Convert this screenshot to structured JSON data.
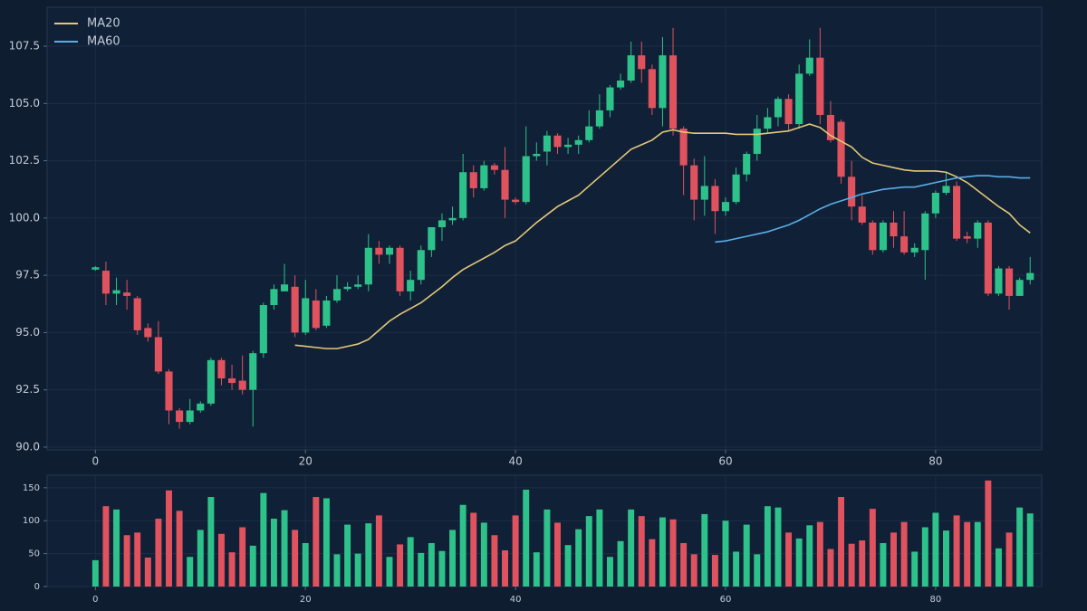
{
  "chart_data": [
    {
      "type": "candlestick",
      "open": [
        97.75,
        97.7,
        96.7,
        96.75,
        96.5,
        95.2,
        94.8,
        93.3,
        91.6,
        91.1,
        91.6,
        91.9,
        93.8,
        93.0,
        92.9,
        92.5,
        94.1,
        96.2,
        96.8,
        97.0,
        95.0,
        96.4,
        95.3,
        96.4,
        96.9,
        97.0,
        97.1,
        98.7,
        98.4,
        98.7,
        96.8,
        97.3,
        98.6,
        99.6,
        99.9,
        100.0,
        102.0,
        101.3,
        102.3,
        102.1,
        100.8,
        100.7,
        102.7,
        102.9,
        103.6,
        103.1,
        103.2,
        103.4,
        104.0,
        104.7,
        105.7,
        106.0,
        107.1,
        106.5,
        104.8,
        107.1,
        103.9,
        102.3,
        100.8,
        101.4,
        100.3,
        100.7,
        101.9,
        102.8,
        103.9,
        104.4,
        105.2,
        104.1,
        106.3,
        107.0,
        104.5,
        104.2,
        101.8,
        100.5,
        99.8,
        98.6,
        99.8,
        99.2,
        98.5,
        98.6,
        100.2,
        101.1,
        101.4,
        99.2,
        99.1,
        99.8,
        96.7,
        97.8,
        96.6,
        97.3
      ],
      "high": [
        97.9,
        98.1,
        97.4,
        97.3,
        96.6,
        95.4,
        95.5,
        93.4,
        91.7,
        92.1,
        92.0,
        93.9,
        93.9,
        93.6,
        94.0,
        94.2,
        96.3,
        97.1,
        98.0,
        97.5,
        97.3,
        96.9,
        96.6,
        97.5,
        97.2,
        97.5,
        99.3,
        99.0,
        98.8,
        98.8,
        97.7,
        98.8,
        99.6,
        100.2,
        100.5,
        102.8,
        102.3,
        102.5,
        102.4,
        103.1,
        100.9,
        104.0,
        103.3,
        103.8,
        103.7,
        103.5,
        103.6,
        104.7,
        105.4,
        105.8,
        106.3,
        107.7,
        107.7,
        106.7,
        107.9,
        108.3,
        104.0,
        102.6,
        102.7,
        101.7,
        100.9,
        102.2,
        102.9,
        104.5,
        104.8,
        105.3,
        105.4,
        106.7,
        107.8,
        108.3,
        105.1,
        104.3,
        102.5,
        101.0,
        99.9,
        99.9,
        100.3,
        100.3,
        98.9,
        100.3,
        101.2,
        102.0,
        101.6,
        99.4,
        99.9,
        99.9,
        97.9,
        97.9,
        97.4,
        98.3
      ],
      "low": [
        97.7,
        96.2,
        96.2,
        96.0,
        94.9,
        94.6,
        93.2,
        91.0,
        90.8,
        91.0,
        91.5,
        91.8,
        92.7,
        92.5,
        92.3,
        90.9,
        93.9,
        96.0,
        96.8,
        94.8,
        94.9,
        95.1,
        95.2,
        96.3,
        96.8,
        96.9,
        96.8,
        98.0,
        98.0,
        96.6,
        96.4,
        97.1,
        98.3,
        99.0,
        99.7,
        99.9,
        100.9,
        101.2,
        101.9,
        100.0,
        100.6,
        100.6,
        102.5,
        102.3,
        102.8,
        102.8,
        102.8,
        103.3,
        103.9,
        104.4,
        105.6,
        105.9,
        105.9,
        104.5,
        104.0,
        103.6,
        101.0,
        99.9,
        100.1,
        99.3,
        100.1,
        100.6,
        101.6,
        102.5,
        103.7,
        104.0,
        103.8,
        103.9,
        106.2,
        104.1,
        103.3,
        101.5,
        99.9,
        99.7,
        98.4,
        98.5,
        98.7,
        98.4,
        98.3,
        97.3,
        100.0,
        101.0,
        99.0,
        98.9,
        98.7,
        96.6,
        96.6,
        96.0,
        96.6,
        97.1
      ],
      "close": [
        97.85,
        96.7,
        96.85,
        96.6,
        95.1,
        94.8,
        93.3,
        91.6,
        91.1,
        91.6,
        91.9,
        93.8,
        93.0,
        92.8,
        92.5,
        94.1,
        96.2,
        96.9,
        97.1,
        95.0,
        96.5,
        95.2,
        96.4,
        96.9,
        97.0,
        97.1,
        98.7,
        98.4,
        98.7,
        96.8,
        97.3,
        98.6,
        99.6,
        99.9,
        100.0,
        102.0,
        101.3,
        102.3,
        102.1,
        100.8,
        100.7,
        102.7,
        102.8,
        103.6,
        103.1,
        103.2,
        103.4,
        104.0,
        104.7,
        105.7,
        106.0,
        107.1,
        106.5,
        104.8,
        107.1,
        103.9,
        102.3,
        100.8,
        101.4,
        100.3,
        100.7,
        101.9,
        102.8,
        103.9,
        104.4,
        105.2,
        104.1,
        106.3,
        107.0,
        104.5,
        103.4,
        101.8,
        100.5,
        99.8,
        98.6,
        99.8,
        99.2,
        98.5,
        98.7,
        100.2,
        101.1,
        101.4,
        99.1,
        99.1,
        99.8,
        96.7,
        97.8,
        96.6,
        97.3,
        97.6
      ],
      "up_color": "#2ec28b",
      "down_color": "#e0525e",
      "series": [
        {
          "name": "MA20",
          "color": "#e3c878",
          "values": [
            null,
            null,
            null,
            null,
            null,
            null,
            null,
            null,
            null,
            null,
            null,
            null,
            null,
            null,
            null,
            null,
            null,
            null,
            null,
            94.45,
            94.4,
            94.35,
            94.3,
            94.3,
            94.4,
            94.5,
            94.7,
            95.1,
            95.5,
            95.8,
            96.05,
            96.3,
            96.65,
            97.0,
            97.4,
            97.75,
            98.0,
            98.25,
            98.5,
            98.8,
            99.0,
            99.4,
            99.8,
            100.15,
            100.5,
            100.75,
            101.0,
            101.4,
            101.8,
            102.2,
            102.6,
            103.0,
            103.2,
            103.4,
            103.75,
            103.85,
            103.75,
            103.7,
            103.7,
            103.7,
            103.7,
            103.65,
            103.65,
            103.65,
            103.7,
            103.75,
            103.8,
            103.95,
            104.1,
            103.95,
            103.6,
            103.35,
            103.1,
            102.65,
            102.4,
            102.3,
            102.2,
            102.1,
            102.05,
            102.05,
            102.05,
            102.0,
            101.8,
            101.55,
            101.2,
            100.85,
            100.5,
            100.2,
            99.7,
            99.35
          ]
        },
        {
          "name": "MA60",
          "color": "#5aaee8",
          "values": [
            null,
            null,
            null,
            null,
            null,
            null,
            null,
            null,
            null,
            null,
            null,
            null,
            null,
            null,
            null,
            null,
            null,
            null,
            null,
            null,
            null,
            null,
            null,
            null,
            null,
            null,
            null,
            null,
            null,
            null,
            null,
            null,
            null,
            null,
            null,
            null,
            null,
            null,
            null,
            null,
            null,
            null,
            null,
            null,
            null,
            null,
            null,
            null,
            null,
            null,
            null,
            null,
            null,
            null,
            null,
            null,
            null,
            null,
            null,
            98.95,
            99.0,
            99.1,
            99.2,
            99.3,
            99.4,
            99.55,
            99.7,
            99.9,
            100.15,
            100.4,
            100.6,
            100.75,
            100.9,
            101.05,
            101.15,
            101.25,
            101.3,
            101.35,
            101.35,
            101.45,
            101.55,
            101.65,
            101.75,
            101.8,
            101.85,
            101.85,
            101.8,
            101.8,
            101.75,
            101.75
          ]
        }
      ],
      "legend": "upper left",
      "grid": true,
      "xlim": [
        -4.6,
        90.1
      ],
      "xticks": [
        0,
        20,
        40,
        60,
        80
      ],
      "ylim": [
        89.88,
        109.2
      ],
      "yticks": [
        {
          "value": 90,
          "label": "90.0"
        },
        92.5,
        {
          "value": 95,
          "label": "95.0"
        },
        97.5,
        {
          "value": 100,
          "label": "100.0"
        },
        102.5,
        {
          "value": 105,
          "label": "105.0"
        },
        107.5
      ]
    },
    {
      "type": "bar",
      "values": [
        40,
        122,
        117,
        78,
        82,
        44,
        103,
        146,
        115,
        45,
        86,
        136,
        80,
        52,
        90,
        62,
        142,
        103,
        116,
        86,
        66,
        136,
        134,
        49,
        94,
        50,
        96,
        108,
        45,
        64,
        75,
        51,
        66,
        54,
        86,
        124,
        112,
        97,
        78,
        55,
        108,
        147,
        52,
        117,
        97,
        63,
        87,
        107,
        117,
        45,
        69,
        117,
        107,
        72,
        105,
        102,
        66,
        49,
        110,
        48,
        100,
        53,
        94,
        49,
        122,
        120,
        82,
        73,
        93,
        98,
        57,
        136,
        65,
        70,
        118,
        66,
        82,
        98,
        53,
        90,
        112,
        85,
        108,
        98,
        98,
        161,
        58,
        82,
        120,
        111
      ],
      "grid": true,
      "xlim": [
        -4.6,
        90.1
      ],
      "xticks": [
        0,
        20,
        40,
        60,
        80
      ],
      "ylim": [
        0,
        169
      ],
      "yticks": [
        0,
        50,
        100,
        150
      ]
    }
  ]
}
